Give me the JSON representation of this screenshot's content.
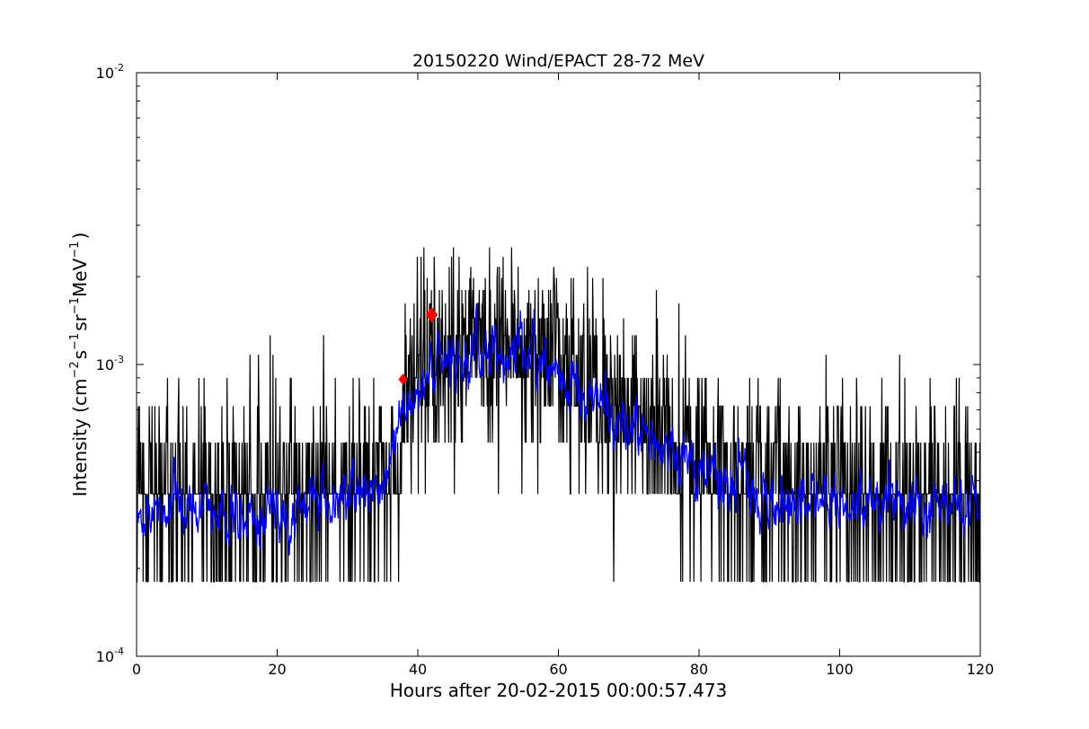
{
  "chart_data": {
    "type": "line",
    "title": "20150220 Wind/EPACT 28-72 MeV",
    "xlabel": "Hours after 20-02-2015 00:00:57.473",
    "ylabel_parts": {
      "prefix": "Intensity (cm",
      "exp1": "−2",
      "mid1": "s",
      "exp2": "−1",
      "mid2": "sr",
      "exp3": "−1",
      "mid3": "MeV",
      "exp4": "−1",
      "suffix": ")"
    },
    "xlim": [
      0,
      120
    ],
    "ylim": [
      0.0001,
      0.01
    ],
    "yscale": "log",
    "grid": false,
    "x_ticks": [
      0,
      20,
      40,
      60,
      80,
      100,
      120
    ],
    "x_tick_labels": [
      "0",
      "20",
      "40",
      "60",
      "80",
      "100",
      "120"
    ],
    "y_ticks": [
      {
        "value": 0.0001,
        "base": "10",
        "exp": "-4"
      },
      {
        "value": 0.001,
        "base": "10",
        "exp": "-3"
      },
      {
        "value": 0.01,
        "base": "10",
        "exp": "-2"
      }
    ],
    "count_levels": [
      0.00018,
      0.00036,
      0.00054,
      0.00072,
      0.0009,
      0.00108,
      0.00126,
      0.00144,
      0.00162,
      0.0018,
      0.00198,
      0.00216,
      0.00234,
      0.00252
    ],
    "series": [
      {
        "role": "raw",
        "color": "#000000",
        "profile": [
          {
            "x": 0,
            "y": 0.00036
          },
          {
            "x": 37.5,
            "y": 0.00037
          },
          {
            "x": 38,
            "y": 0.0009
          },
          {
            "x": 41,
            "y": 0.0011
          },
          {
            "x": 45,
            "y": 0.00115
          },
          {
            "x": 55,
            "y": 0.0011
          },
          {
            "x": 62,
            "y": 0.00095
          },
          {
            "x": 67,
            "y": 0.00075
          },
          {
            "x": 72,
            "y": 0.0006
          },
          {
            "x": 80,
            "y": 0.00045
          },
          {
            "x": 90,
            "y": 0.00036
          },
          {
            "x": 120,
            "y": 0.00034
          }
        ]
      },
      {
        "role": "smoothed",
        "color": "#0000ff",
        "profile": [
          {
            "x": 0,
            "y": 0.00032
          },
          {
            "x": 20,
            "y": 0.00031
          },
          {
            "x": 30,
            "y": 0.00035
          },
          {
            "x": 35,
            "y": 0.00038
          },
          {
            "x": 38,
            "y": 0.00072
          },
          {
            "x": 42,
            "y": 0.00098
          },
          {
            "x": 50,
            "y": 0.00112
          },
          {
            "x": 56,
            "y": 0.00115
          },
          {
            "x": 62,
            "y": 0.0009
          },
          {
            "x": 68,
            "y": 0.00065
          },
          {
            "x": 75,
            "y": 0.0005
          },
          {
            "x": 82,
            "y": 0.00042
          },
          {
            "x": 90,
            "y": 0.00034
          },
          {
            "x": 120,
            "y": 0.00032
          }
        ]
      }
    ],
    "markers": [
      {
        "x": 37.9,
        "y": 0.00089,
        "color": "#ff0000",
        "shape": "diamond",
        "size": "small"
      },
      {
        "x": 42.0,
        "y": 0.00148,
        "color": "#ff0000",
        "shape": "diamond",
        "size": "large"
      }
    ]
  }
}
